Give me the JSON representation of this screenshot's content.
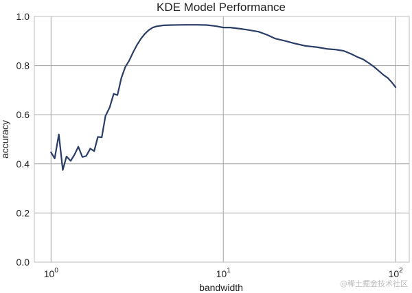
{
  "chart_data": {
    "type": "line",
    "title": "KDE Model Performance",
    "xlabel": "bandwidth",
    "ylabel": "accuracy",
    "xscale": "log",
    "xlim": [
      0.8,
      120
    ],
    "ylim": [
      0,
      1.0
    ],
    "xticks": [
      {
        "base": "10",
        "exp": "0",
        "value": 1
      },
      {
        "base": "10",
        "exp": "1",
        "value": 10
      },
      {
        "base": "10",
        "exp": "2",
        "value": 100
      }
    ],
    "yticks": [
      {
        "label": "0.0",
        "value": 0.0
      },
      {
        "label": "0.2",
        "value": 0.2
      },
      {
        "label": "0.4",
        "value": 0.4
      },
      {
        "label": "0.6",
        "value": 0.6
      },
      {
        "label": "0.8",
        "value": 0.8
      },
      {
        "label": "1.0",
        "value": 1.0
      }
    ],
    "grid": true,
    "line_color": "#2a3d66",
    "series": [
      {
        "x": [
          1.0,
          1.05,
          1.11,
          1.17,
          1.23,
          1.3,
          1.37,
          1.44,
          1.52,
          1.6,
          1.69,
          1.78,
          1.87,
          1.97,
          2.07,
          2.19,
          2.31,
          2.43,
          2.56,
          2.7,
          2.84,
          3.0,
          3.16,
          3.33,
          3.51,
          3.7,
          3.9,
          4.11,
          4.5,
          5.0,
          6.0,
          7.0,
          8.0,
          9.0,
          10.0,
          11.0,
          12.5,
          14.0,
          16.0,
          18.0,
          20.0,
          23.0,
          26.0,
          30.0,
          35.0,
          40.0,
          45.0,
          50.0,
          55.0,
          60.0,
          65.0,
          70.0,
          75.0,
          80.0,
          85.0,
          90.0,
          95.0,
          100.0
        ],
        "y": [
          0.447,
          0.422,
          0.52,
          0.375,
          0.43,
          0.412,
          0.438,
          0.47,
          0.428,
          0.432,
          0.462,
          0.452,
          0.51,
          0.508,
          0.595,
          0.63,
          0.685,
          0.68,
          0.75,
          0.795,
          0.82,
          0.855,
          0.885,
          0.91,
          0.93,
          0.945,
          0.955,
          0.96,
          0.964,
          0.965,
          0.966,
          0.966,
          0.965,
          0.961,
          0.955,
          0.955,
          0.95,
          0.945,
          0.938,
          0.925,
          0.91,
          0.9,
          0.89,
          0.88,
          0.875,
          0.868,
          0.865,
          0.86,
          0.848,
          0.835,
          0.825,
          0.81,
          0.795,
          0.778,
          0.762,
          0.75,
          0.732,
          0.712
        ]
      }
    ]
  },
  "watermark": "@稀土掘金技术社区"
}
